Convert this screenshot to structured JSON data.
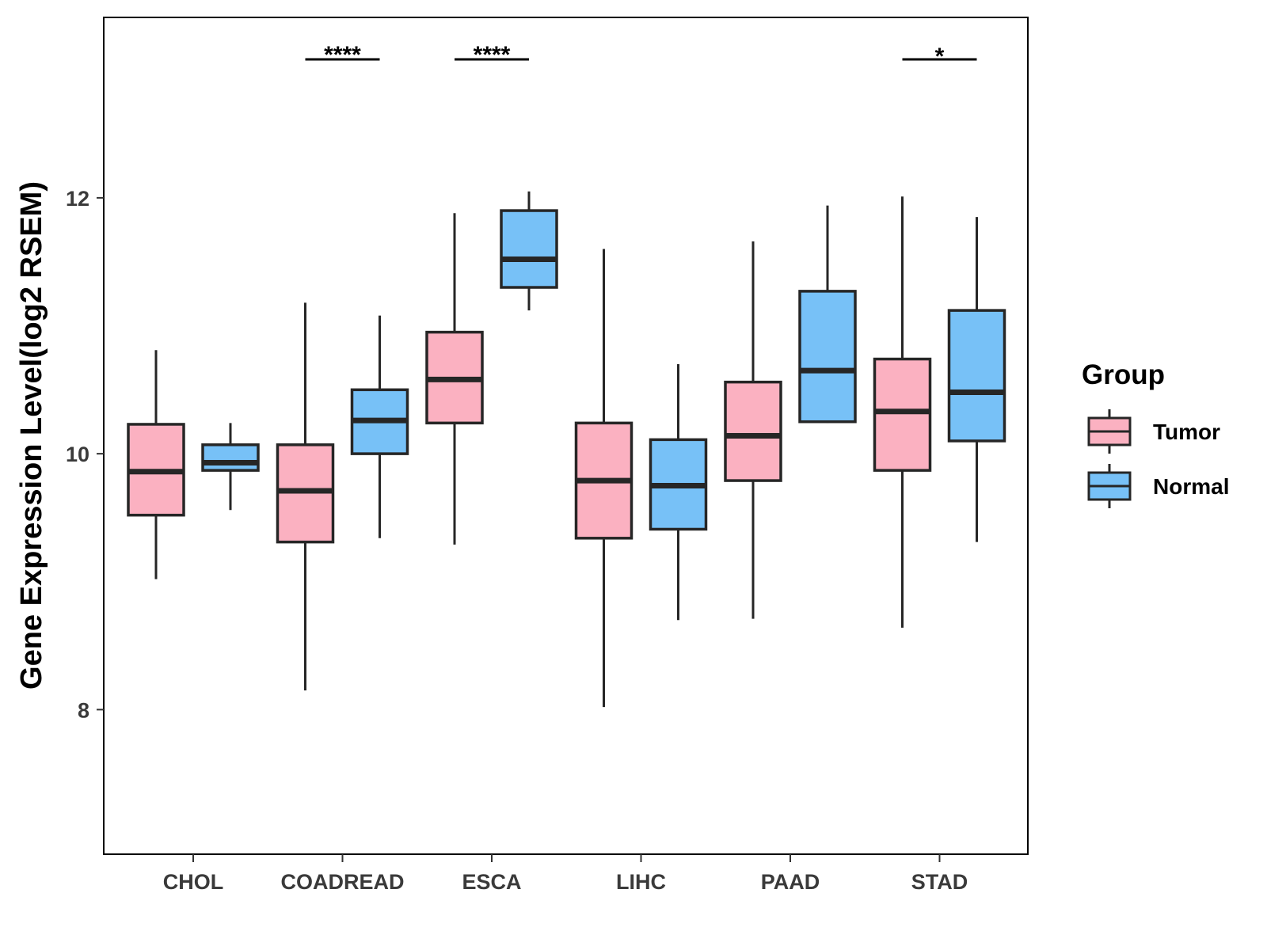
{
  "chart_data": {
    "type": "boxplot",
    "title": "",
    "xlabel": "",
    "ylabel": "Gene Expression Level(log2 RSEM)",
    "ylim": [
      6.87,
      13.41
    ],
    "yticks": [
      8,
      10,
      12
    ],
    "categories": [
      "CHOL",
      "COADREAD",
      "ESCA",
      "LIHC",
      "PAAD",
      "STAD"
    ],
    "legend": {
      "title": "Group",
      "position": "right"
    },
    "series": [
      {
        "name": "Tumor",
        "color": "#FBB1C1",
        "boxes": [
          {
            "min": 9.02,
            "q1": 9.52,
            "median": 9.86,
            "q3": 10.23,
            "max": 10.81
          },
          {
            "min": 8.15,
            "q1": 9.31,
            "median": 9.71,
            "q3": 10.07,
            "max": 11.18
          },
          {
            "min": 9.29,
            "q1": 10.24,
            "median": 10.58,
            "q3": 10.95,
            "max": 11.88
          },
          {
            "min": 8.02,
            "q1": 9.34,
            "median": 9.79,
            "q3": 10.24,
            "max": 11.6
          },
          {
            "min": 8.71,
            "q1": 9.79,
            "median": 10.14,
            "q3": 10.56,
            "max": 11.66
          },
          {
            "min": 8.64,
            "q1": 9.87,
            "median": 10.33,
            "q3": 10.74,
            "max": 12.01
          }
        ]
      },
      {
        "name": "Normal",
        "color": "#77C1F7",
        "boxes": [
          {
            "min": 9.56,
            "q1": 9.87,
            "median": 9.93,
            "q3": 10.07,
            "max": 10.24
          },
          {
            "min": 9.34,
            "q1": 10.0,
            "median": 10.26,
            "q3": 10.5,
            "max": 11.08
          },
          {
            "min": 11.12,
            "q1": 11.3,
            "median": 11.52,
            "q3": 11.9,
            "max": 12.05
          },
          {
            "min": 8.7,
            "q1": 9.41,
            "median": 9.75,
            "q3": 10.11,
            "max": 10.7
          },
          {
            "min": 10.24,
            "q1": 10.25,
            "median": 10.65,
            "q3": 11.27,
            "max": 11.94
          },
          {
            "min": 9.31,
            "q1": 10.1,
            "median": 10.48,
            "q3": 11.12,
            "max": 11.85
          }
        ]
      }
    ],
    "significance": [
      {
        "category": "COADREAD",
        "label": "****"
      },
      {
        "category": "ESCA",
        "label": "****"
      },
      {
        "category": "STAD",
        "label": "*"
      }
    ]
  }
}
